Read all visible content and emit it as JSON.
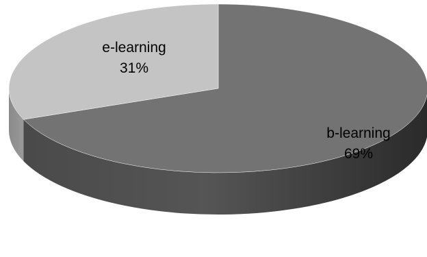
{
  "chart_data": {
    "type": "pie",
    "style": "3d",
    "slices": [
      {
        "label": "b-learning",
        "value": 69,
        "value_label": "69%",
        "color": "#737373"
      },
      {
        "label": "e-learning",
        "value": 31,
        "value_label": "31%",
        "color": "#c4c4c4"
      }
    ]
  }
}
